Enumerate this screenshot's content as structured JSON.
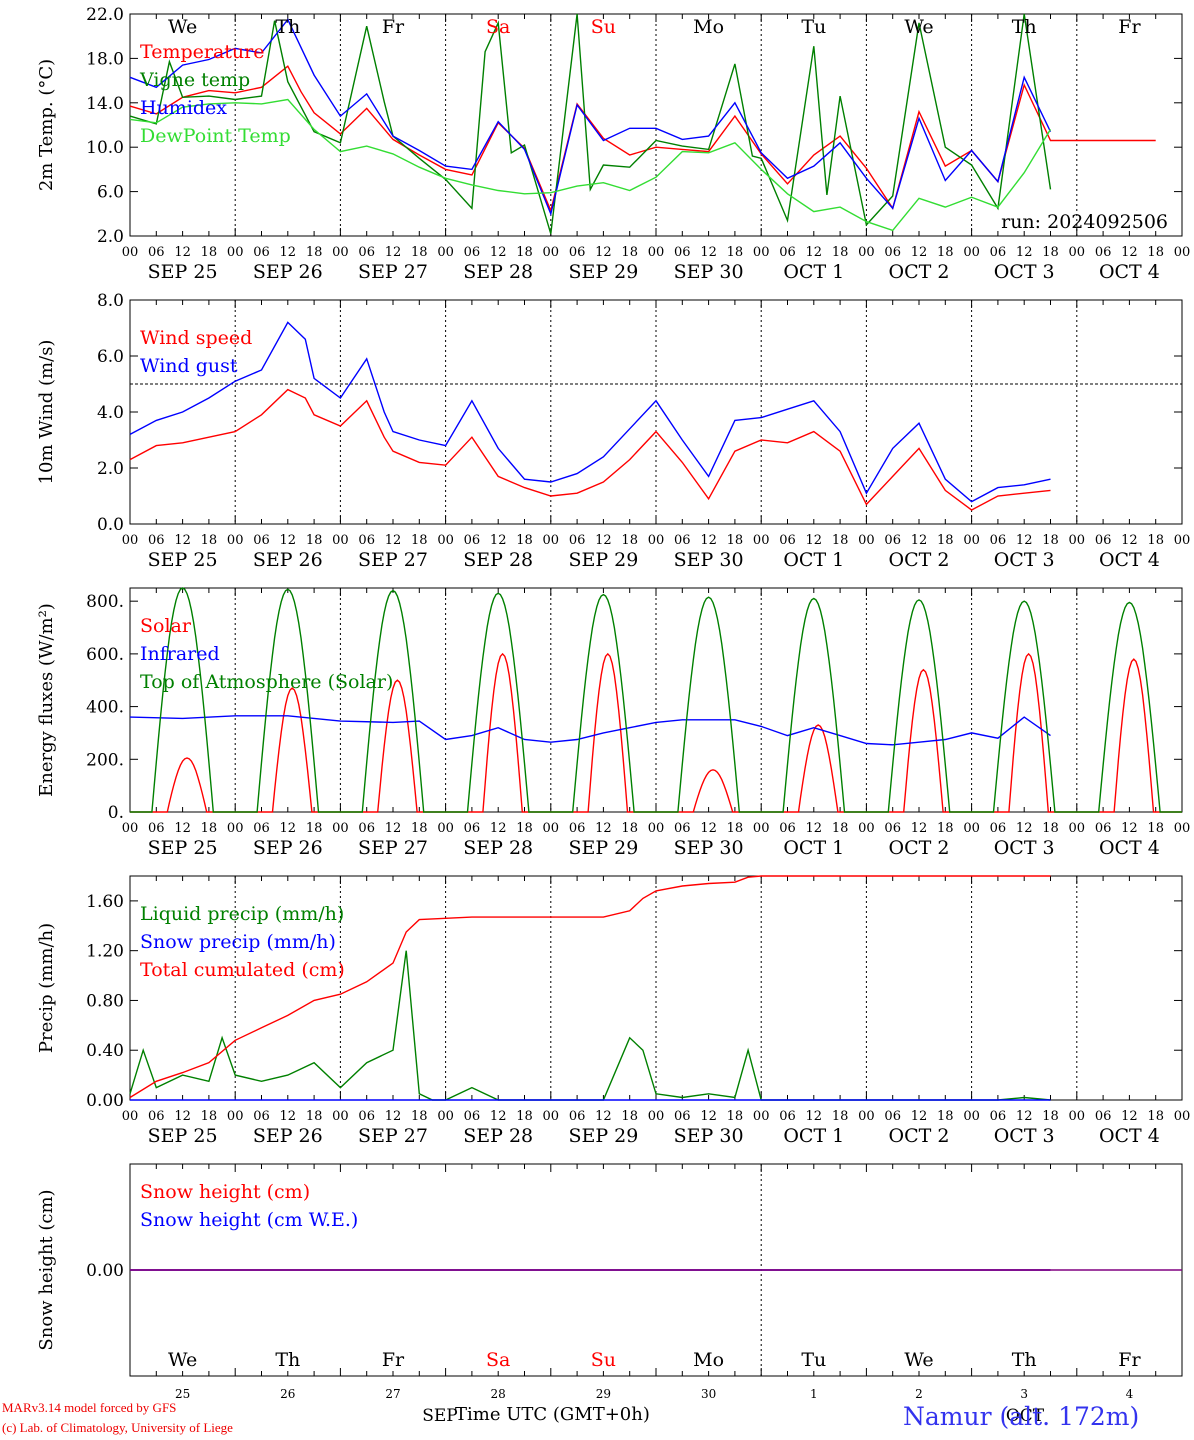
{
  "title": "",
  "run_label": "run: 2024092506",
  "colors": {
    "red": "#ff0000",
    "blue": "#0000ff",
    "green": "#008000",
    "lightgreen": "#33dd33",
    "purple": "#800080"
  },
  "x_axis": {
    "hour_ticks": [
      "00",
      "06",
      "12",
      "18"
    ],
    "dates": [
      "SEP 25",
      "SEP 26",
      "SEP 27",
      "SEP 28",
      "SEP 29",
      "SEP 30",
      "OCT  1",
      "OCT  2",
      "OCT  3",
      "OCT  4"
    ],
    "weekdays": [
      {
        "label": "We",
        "color": "#000000"
      },
      {
        "label": "Th",
        "color": "#000000"
      },
      {
        "label": "Fr",
        "color": "#000000"
      },
      {
        "label": "Sa",
        "color": "#ff0000"
      },
      {
        "label": "Su",
        "color": "#ff0000"
      },
      {
        "label": "Mo",
        "color": "#000000"
      },
      {
        "label": "Tu",
        "color": "#000000"
      },
      {
        "label": "We",
        "color": "#000000"
      },
      {
        "label": "Th",
        "color": "#000000"
      },
      {
        "label": "Fr",
        "color": "#000000"
      }
    ],
    "day_numbers": [
      "25",
      "26",
      "27",
      "28",
      "29",
      "30",
      "1",
      "2",
      "3",
      "4"
    ],
    "month_labels": [
      "SEP",
      "OCT"
    ],
    "xlabel": "Time UTC (GMT+0h)"
  },
  "footer": {
    "model": "MARv3.14 model forced by GFS",
    "credit": "(c) Lab. of Climatology, University of Liege",
    "station": "Namur (alt. 172m)"
  },
  "chart_data": [
    {
      "type": "line",
      "ylabel": "2m Temp. (°C)",
      "ylim": [
        2.0,
        22.0
      ],
      "yticks": [
        "2.0",
        "6.0",
        "10.0",
        "14.0",
        "18.0",
        "22.0"
      ],
      "x_unit": "hours since SEP 25 00 UTC",
      "series": [
        {
          "name": "Temperature",
          "color": "#ff0000",
          "x": [
            0,
            6,
            12,
            18,
            24,
            30,
            36,
            39,
            42,
            48,
            54,
            60,
            66,
            72,
            78,
            84,
            90,
            96,
            102,
            108,
            114,
            120,
            126,
            132,
            138,
            144,
            150,
            156,
            162,
            168,
            174,
            180,
            186,
            192,
            198,
            204,
            210,
            216,
            222,
            228,
            234
          ],
          "y": [
            13.7,
            13,
            14.5,
            15.1,
            14.9,
            15.4,
            17.3,
            15,
            13.1,
            11.2,
            13.5,
            10.7,
            9.3,
            8,
            7.5,
            12.2,
            9.9,
            4.3,
            13.9,
            10.8,
            9.3,
            10,
            9.8,
            9.6,
            12.8,
            9.4,
            6.7,
            9.3,
            11,
            8.1,
            4.5,
            13.2,
            8.3,
            9.7,
            6.9,
            15.6,
            10.6,
            10.6,
            10.6,
            10.6,
            10.6
          ]
        },
        {
          "name": "Vigne temp",
          "color": "#008000",
          "x": [
            0,
            6,
            9,
            12,
            18,
            24,
            30,
            33,
            36,
            42,
            48,
            54,
            58,
            60,
            66,
            72,
            78,
            81,
            84,
            87,
            90,
            96,
            102,
            105,
            108,
            114,
            120,
            126,
            132,
            138,
            142,
            144,
            150,
            156,
            159,
            162,
            168,
            174,
            180,
            186,
            192,
            198,
            204,
            210
          ],
          "y": [
            12.8,
            12.1,
            17.7,
            14.5,
            14.6,
            14.3,
            14.6,
            21.4,
            15.9,
            11.4,
            10.4,
            20.9,
            14.1,
            11,
            9,
            7.1,
            4.5,
            18.6,
            21.2,
            9.5,
            10.2,
            2.2,
            22.4,
            6.2,
            8.4,
            8.2,
            10.6,
            10.1,
            9.8,
            17.5,
            9.2,
            9,
            3.4,
            19.1,
            5.7,
            14.6,
            3,
            5.6,
            21.2,
            10,
            8.4,
            4.5,
            22.7,
            6.2
          ]
        },
        {
          "name": "Humidex",
          "color": "#0000ff",
          "x": [
            0,
            6,
            12,
            18,
            24,
            30,
            36,
            42,
            48,
            54,
            60,
            66,
            72,
            78,
            84,
            90,
            96,
            102,
            108,
            114,
            120,
            126,
            132,
            138,
            144,
            150,
            156,
            162,
            168,
            174,
            180,
            186,
            192,
            198,
            204,
            210
          ],
          "y": [
            16.3,
            15.4,
            17.4,
            17.9,
            18.9,
            18.5,
            21.5,
            16.5,
            12.8,
            14.8,
            11,
            9.7,
            8.3,
            8,
            12.3,
            9.8,
            4,
            13.8,
            10.6,
            11.7,
            11.7,
            10.7,
            11,
            14,
            9.5,
            7.2,
            8.3,
            10.4,
            7.2,
            4.5,
            12.6,
            7,
            9.7,
            6.9,
            16.3,
            11.4
          ]
        },
        {
          "name": "DewPoint Temp",
          "color": "#33dd33",
          "x": [
            0,
            6,
            12,
            18,
            24,
            30,
            36,
            42,
            48,
            54,
            60,
            66,
            72,
            78,
            84,
            90,
            96,
            102,
            108,
            114,
            120,
            126,
            132,
            138,
            144,
            150,
            156,
            162,
            168,
            174,
            180,
            186,
            192,
            198,
            204,
            210
          ],
          "y": [
            12.5,
            12.2,
            13.6,
            13.9,
            14,
            13.9,
            14.3,
            11.6,
            9.6,
            10.1,
            9.4,
            8.2,
            7.2,
            6.6,
            6.1,
            5.8,
            5.9,
            6.5,
            6.8,
            6.1,
            7.3,
            9.6,
            9.5,
            10.4,
            8,
            5.8,
            4.2,
            4.6,
            3.3,
            2.5,
            5.4,
            4.6,
            5.5,
            4.6,
            7.7,
            11.6
          ]
        }
      ]
    },
    {
      "type": "line",
      "ylabel": "10m Wind (m/s)",
      "ylim": [
        0.0,
        8.0
      ],
      "yticks": [
        "0.0",
        "2.0",
        "4.0",
        "6.0",
        "8.0"
      ],
      "reference_line": 5.0,
      "series": [
        {
          "name": "Wind speed",
          "color": "#ff0000",
          "x": [
            0,
            6,
            12,
            18,
            24,
            30,
            36,
            40,
            42,
            48,
            54,
            58,
            60,
            66,
            72,
            78,
            84,
            90,
            96,
            102,
            108,
            114,
            120,
            126,
            132,
            138,
            144,
            150,
            156,
            162,
            168,
            174,
            180,
            186,
            192,
            198,
            204,
            210
          ],
          "y": [
            2.3,
            2.8,
            2.9,
            3.1,
            3.3,
            3.9,
            4.8,
            4.5,
            3.9,
            3.5,
            4.4,
            3.1,
            2.6,
            2.2,
            2.1,
            3.1,
            1.7,
            1.3,
            1.0,
            1.1,
            1.5,
            2.3,
            3.3,
            2.2,
            0.9,
            2.6,
            3.0,
            2.9,
            3.3,
            2.6,
            0.7,
            1.7,
            2.7,
            1.2,
            0.5,
            1.0,
            1.1,
            1.2
          ]
        },
        {
          "name": "Wind gust",
          "color": "#0000ff",
          "x": [
            0,
            6,
            12,
            18,
            24,
            30,
            36,
            40,
            42,
            48,
            54,
            58,
            60,
            66,
            72,
            78,
            84,
            90,
            96,
            102,
            108,
            114,
            120,
            126,
            132,
            138,
            144,
            150,
            156,
            162,
            168,
            174,
            180,
            186,
            192,
            198,
            204,
            210
          ],
          "y": [
            3.2,
            3.7,
            4.0,
            4.5,
            5.1,
            5.5,
            7.2,
            6.6,
            5.2,
            4.5,
            5.9,
            4.0,
            3.3,
            3.0,
            2.8,
            4.4,
            2.7,
            1.6,
            1.5,
            1.8,
            2.4,
            3.4,
            4.4,
            3.0,
            1.7,
            3.7,
            3.8,
            4.1,
            4.4,
            3.3,
            1.1,
            2.7,
            3.6,
            1.6,
            0.8,
            1.3,
            1.4,
            1.6
          ]
        }
      ]
    },
    {
      "type": "line",
      "ylabel": "Energy fluxes (W/m²)",
      "ylim": [
        0,
        850
      ],
      "yticks": [
        "0.",
        "200.",
        "400.",
        "600.",
        "800."
      ],
      "series": [
        {
          "name": "Solar",
          "color": "#ff0000",
          "peaks": [
            205,
            470,
            500,
            600,
            600,
            160,
            330,
            540,
            600,
            580
          ],
          "peak_hour": 13
        },
        {
          "name": "Infrared",
          "color": "#0000ff",
          "x": [
            0,
            12,
            24,
            36,
            48,
            60,
            66,
            72,
            78,
            84,
            90,
            96,
            102,
            108,
            114,
            120,
            126,
            132,
            138,
            144,
            150,
            156,
            162,
            168,
            174,
            180,
            186,
            192,
            198,
            204,
            210
          ],
          "y": [
            360,
            355,
            365,
            365,
            345,
            340,
            345,
            275,
            290,
            320,
            275,
            265,
            275,
            300,
            320,
            340,
            350,
            350,
            350,
            325,
            290,
            320,
            290,
            260,
            255,
            265,
            275,
            300,
            280,
            360,
            290
          ]
        },
        {
          "name": "Top of Atmosphere (Solar)",
          "color": "#008000",
          "peaks": [
            850,
            845,
            840,
            830,
            825,
            815,
            810,
            805,
            800,
            795
          ],
          "peak_hour": 12
        }
      ]
    },
    {
      "type": "line",
      "ylabel": "Precip (mm/h)",
      "ylim": [
        0.0,
        1.8
      ],
      "yticks": [
        "0.00",
        "0.40",
        "0.80",
        "1.20",
        "1.60"
      ],
      "series": [
        {
          "name": "Liquid precip (mm/h)",
          "color": "#008000",
          "x": [
            0,
            3,
            6,
            12,
            18,
            21,
            24,
            30,
            36,
            42,
            48,
            54,
            60,
            63,
            66,
            69,
            72,
            78,
            84,
            90,
            96,
            102,
            108,
            114,
            117,
            120,
            126,
            132,
            138,
            141,
            144,
            150,
            156,
            162,
            168,
            174,
            180,
            186,
            192,
            198,
            204,
            210
          ],
          "y": [
            0.05,
            0.4,
            0.1,
            0.2,
            0.15,
            0.5,
            0.2,
            0.15,
            0.2,
            0.3,
            0.1,
            0.3,
            0.4,
            1.2,
            0.05,
            0,
            0,
            0.1,
            0,
            0,
            0,
            0,
            0,
            0.5,
            0.4,
            0.05,
            0.02,
            0.05,
            0.02,
            0.4,
            0,
            0,
            0,
            0,
            0,
            0,
            0,
            0,
            0,
            0,
            0.02,
            0
          ]
        },
        {
          "name": "Snow precip (mm/h)",
          "color": "#0000ff",
          "x": [
            0,
            210
          ],
          "y": [
            0,
            0
          ]
        },
        {
          "name": "Total cumulated (cm)",
          "color": "#ff0000",
          "x": [
            0,
            6,
            12,
            18,
            24,
            30,
            36,
            42,
            48,
            54,
            60,
            63,
            66,
            72,
            78,
            84,
            90,
            96,
            102,
            108,
            114,
            117,
            120,
            126,
            132,
            138,
            141,
            144,
            150,
            210
          ],
          "y": [
            0.02,
            0.15,
            0.22,
            0.3,
            0.48,
            0.58,
            0.68,
            0.8,
            0.85,
            0.95,
            1.1,
            1.35,
            1.45,
            1.46,
            1.47,
            1.47,
            1.47,
            1.47,
            1.47,
            1.47,
            1.52,
            1.62,
            1.68,
            1.72,
            1.74,
            1.75,
            1.79,
            1.8,
            1.81,
            1.82
          ]
        }
      ]
    },
    {
      "type": "line",
      "ylabel": "Snow height (cm)",
      "ylim": [
        -1,
        1
      ],
      "yticks": [
        "0.00"
      ],
      "series": [
        {
          "name": "Snow height (cm)",
          "color": "#ff0000",
          "x": [
            0,
            210
          ],
          "y": [
            0,
            0
          ]
        },
        {
          "name": "Snow height (cm W.E.)",
          "color": "#0000ff",
          "x": [
            0,
            210
          ],
          "y": [
            0,
            0
          ]
        }
      ]
    }
  ]
}
